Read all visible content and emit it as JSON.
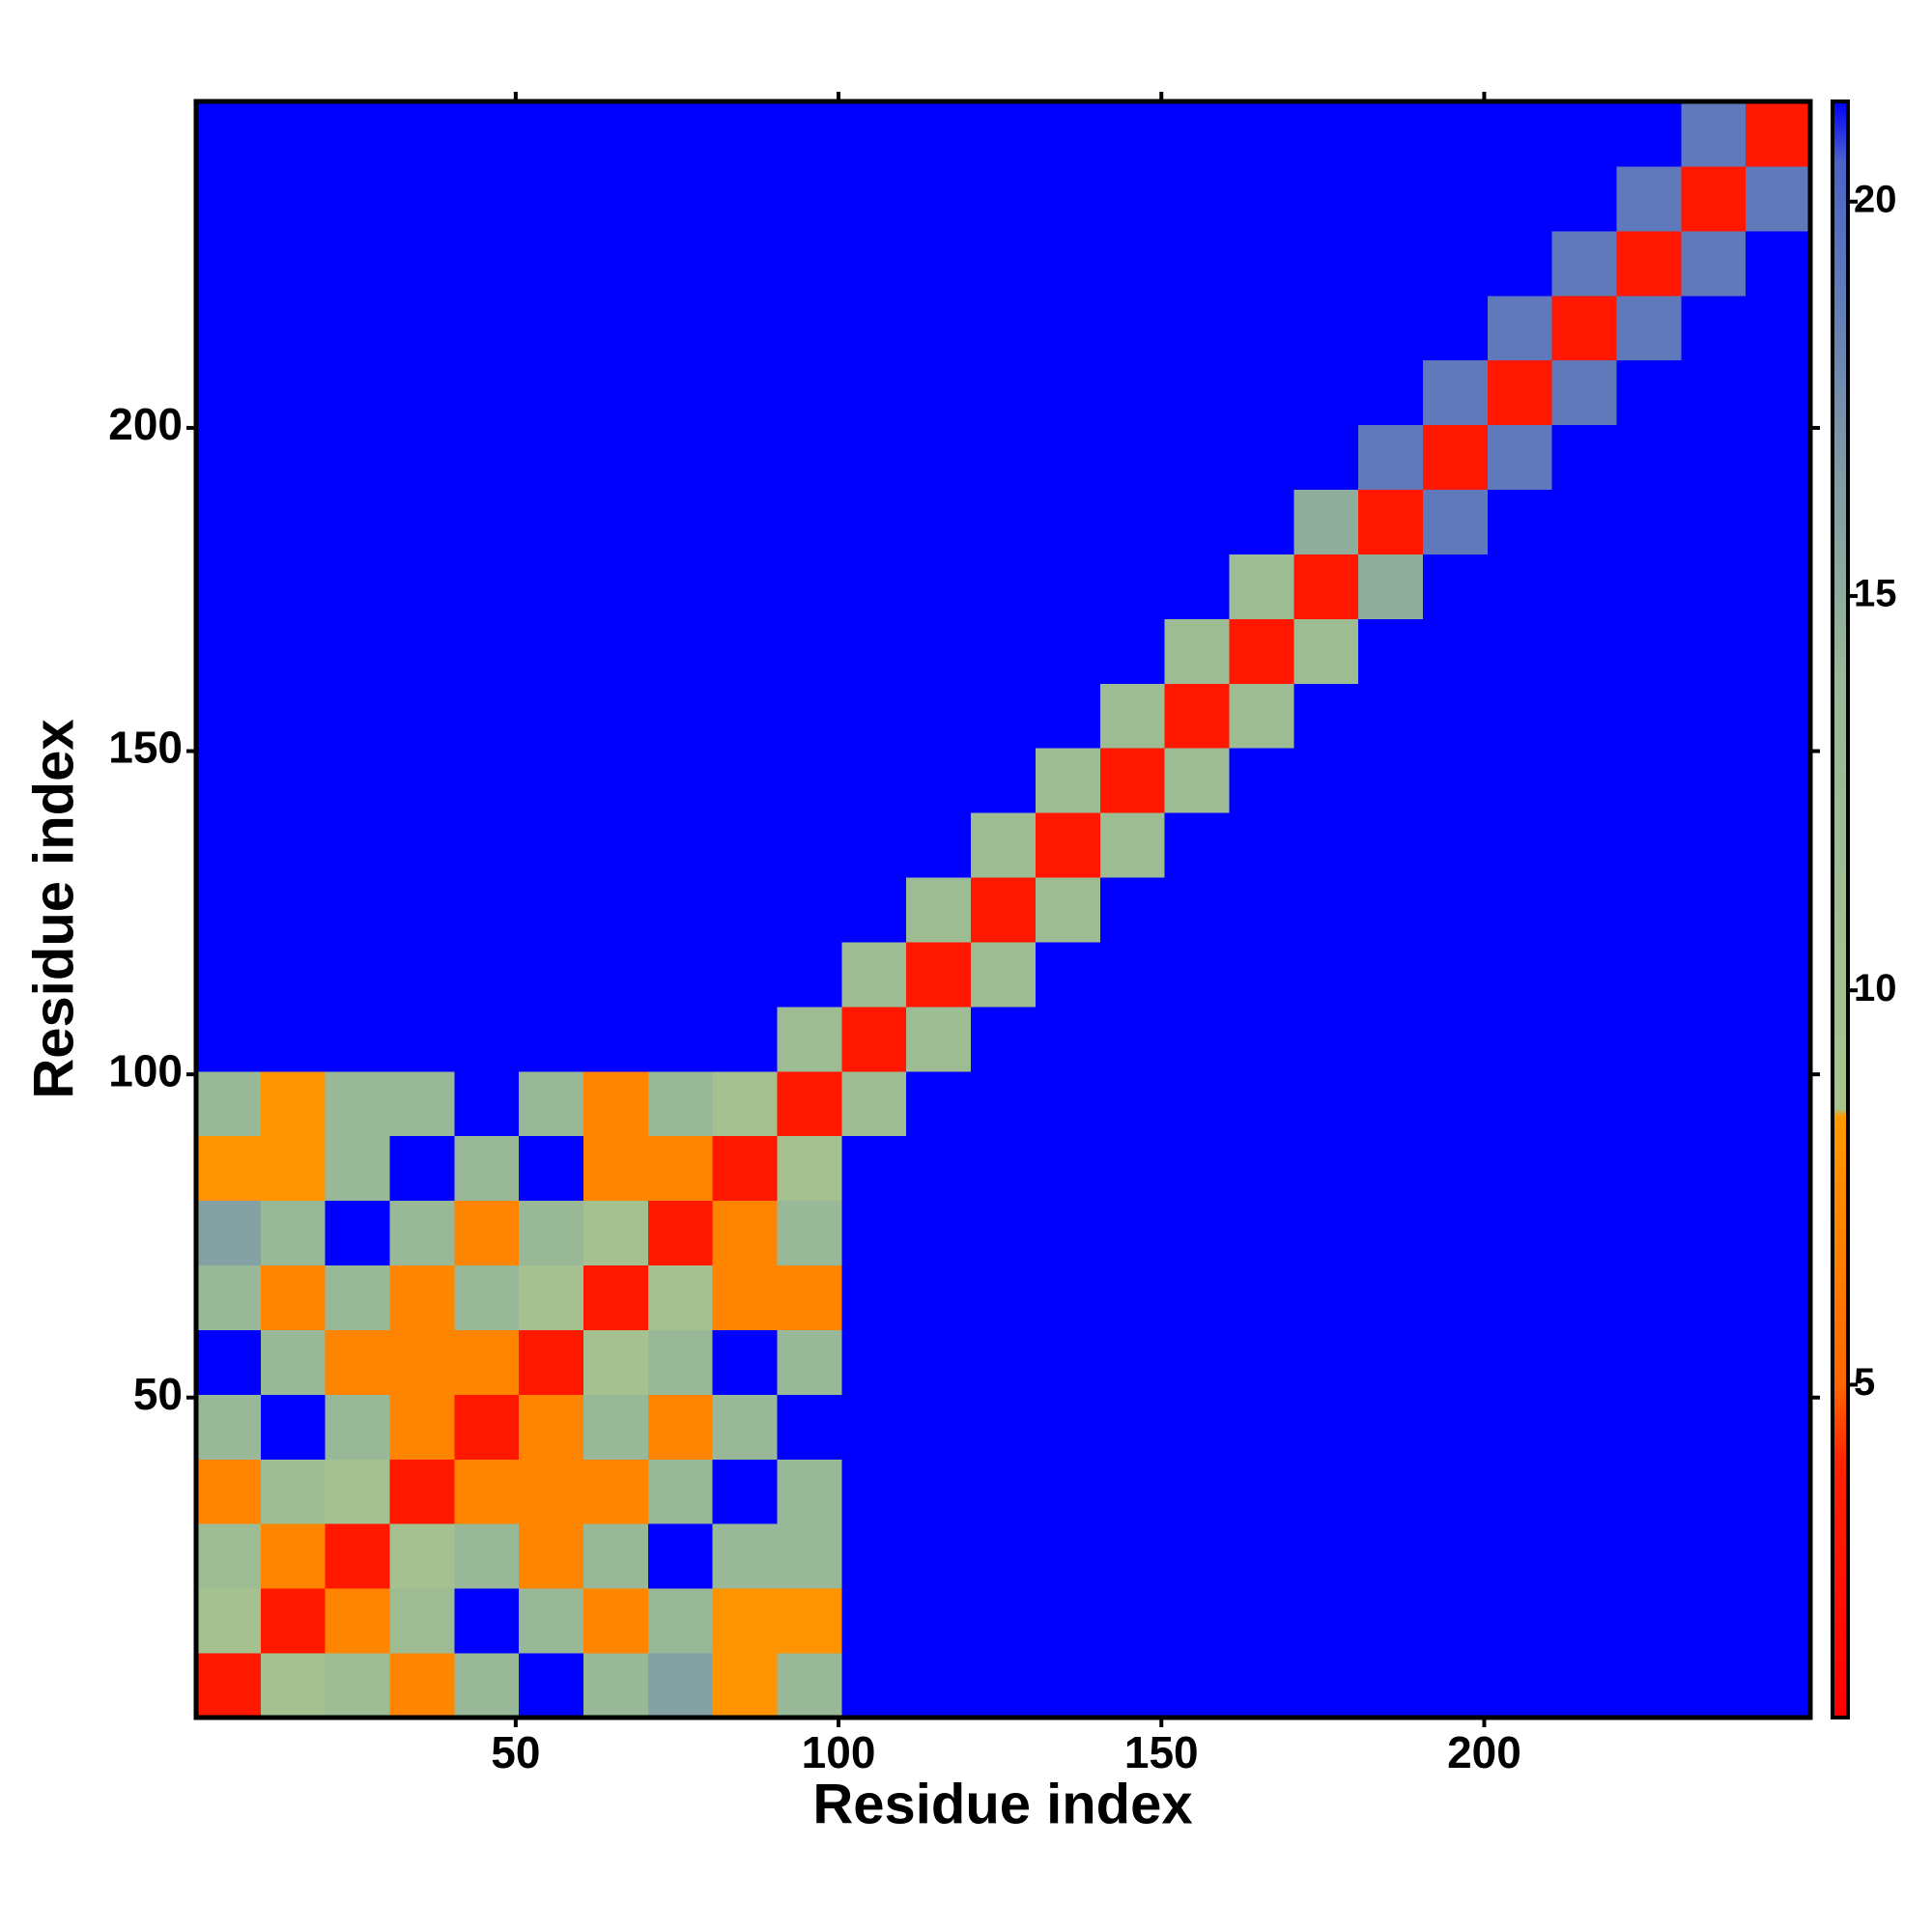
{
  "chart_data": {
    "type": "heatmap",
    "x_label": "Residue index",
    "y_label": "Residue index",
    "bins": [
      0.5,
      10.5,
      20.5,
      30.5,
      40.5,
      50.5,
      60.5,
      70.5,
      80.5,
      90.5,
      100.5,
      110.5,
      120.5,
      130.5,
      140.5,
      150.5,
      160.5,
      170.5,
      180.5,
      190.5,
      200.5,
      210.5,
      220.5,
      230.5,
      240.5,
      250.5
    ],
    "xlim": [
      0.5,
      250.5
    ],
    "ylim": [
      0.5,
      250.5
    ],
    "xticks": [
      50,
      100,
      150,
      200
    ],
    "yticks": [
      50,
      100,
      150,
      200
    ],
    "zlim": [
      0.78,
      21.27
    ],
    "zticks": [
      5,
      10,
      15,
      20
    ],
    "colorscale": [
      [
        0.78,
        "#ff0000"
      ],
      [
        4,
        "#ff2200"
      ],
      [
        5,
        "#ff6600"
      ],
      [
        8.4,
        "#ff9900"
      ],
      [
        8.5,
        "#a8c48c"
      ],
      [
        14,
        "#98b898"
      ],
      [
        17,
        "#7a96a8"
      ],
      [
        20.5,
        "#4a64c8"
      ],
      [
        21.27,
        "#0000ff"
      ]
    ],
    "z": [
      [
        3,
        10,
        12,
        7,
        14,
        21.27,
        14,
        16,
        8,
        14,
        21.27,
        21.27,
        21.27,
        21.27,
        21.27,
        21.27,
        21.27,
        21.27,
        21.27,
        21.27,
        21.27,
        21.27,
        21.27,
        21.27,
        21.27
      ],
      [
        10,
        3,
        7,
        12,
        21.27,
        14,
        7,
        14,
        8,
        8,
        21.27,
        21.27,
        21.27,
        21.27,
        21.27,
        21.27,
        21.27,
        21.27,
        21.27,
        21.27,
        21.27,
        21.27,
        21.27,
        21.27,
        21.27
      ],
      [
        12,
        7,
        3,
        10,
        14,
        7,
        14,
        21.27,
        14,
        14,
        21.27,
        21.27,
        21.27,
        21.27,
        21.27,
        21.27,
        21.27,
        21.27,
        21.27,
        21.27,
        21.27,
        21.27,
        21.27,
        21.27,
        21.27
      ],
      [
        7,
        12,
        10,
        3,
        7,
        7,
        7,
        14,
        21.27,
        14,
        21.27,
        21.27,
        21.27,
        21.27,
        21.27,
        21.27,
        21.27,
        21.27,
        21.27,
        21.27,
        21.27,
        21.27,
        21.27,
        21.27,
        21.27
      ],
      [
        14,
        21.27,
        14,
        7,
        3,
        7,
        14,
        7,
        14,
        21.27,
        21.27,
        21.27,
        21.27,
        21.27,
        21.27,
        21.27,
        21.27,
        21.27,
        21.27,
        21.27,
        21.27,
        21.27,
        21.27,
        21.27,
        21.27
      ],
      [
        21.27,
        14,
        7,
        7,
        7,
        3,
        10,
        14,
        21.27,
        14,
        21.27,
        21.27,
        21.27,
        21.27,
        21.27,
        21.27,
        21.27,
        21.27,
        21.27,
        21.27,
        21.27,
        21.27,
        21.27,
        21.27,
        21.27
      ],
      [
        14,
        7,
        14,
        7,
        14,
        10,
        3,
        10,
        7,
        7,
        21.27,
        21.27,
        21.27,
        21.27,
        21.27,
        21.27,
        21.27,
        21.27,
        21.27,
        21.27,
        21.27,
        21.27,
        21.27,
        21.27,
        21.27
      ],
      [
        16,
        14,
        21.27,
        14,
        7,
        14,
        10,
        3,
        7,
        14,
        21.27,
        21.27,
        21.27,
        21.27,
        21.27,
        21.27,
        21.27,
        21.27,
        21.27,
        21.27,
        21.27,
        21.27,
        21.27,
        21.27,
        21.27
      ],
      [
        8,
        8,
        14,
        21.27,
        14,
        21.27,
        7,
        7,
        3,
        10,
        21.27,
        21.27,
        21.27,
        21.27,
        21.27,
        21.27,
        21.27,
        21.27,
        21.27,
        21.27,
        21.27,
        21.27,
        21.27,
        21.27,
        21.27
      ],
      [
        14,
        8,
        14,
        14,
        21.27,
        14,
        7,
        14,
        10,
        3,
        12,
        21.27,
        21.27,
        21.27,
        21.27,
        21.27,
        21.27,
        21.27,
        21.27,
        21.27,
        21.27,
        21.27,
        21.27,
        21.27,
        21.27
      ],
      [
        21.27,
        21.27,
        21.27,
        21.27,
        21.27,
        21.27,
        21.27,
        21.27,
        21.27,
        12,
        3,
        12,
        21.27,
        21.27,
        21.27,
        21.27,
        21.27,
        21.27,
        21.27,
        21.27,
        21.27,
        21.27,
        21.27,
        21.27,
        21.27
      ],
      [
        21.27,
        21.27,
        21.27,
        21.27,
        21.27,
        21.27,
        21.27,
        21.27,
        21.27,
        21.27,
        12,
        3,
        12,
        21.27,
        21.27,
        21.27,
        21.27,
        21.27,
        21.27,
        21.27,
        21.27,
        21.27,
        21.27,
        21.27,
        21.27
      ],
      [
        21.27,
        21.27,
        21.27,
        21.27,
        21.27,
        21.27,
        21.27,
        21.27,
        21.27,
        21.27,
        21.27,
        12,
        3,
        12,
        21.27,
        21.27,
        21.27,
        21.27,
        21.27,
        21.27,
        21.27,
        21.27,
        21.27,
        21.27,
        21.27
      ],
      [
        21.27,
        21.27,
        21.27,
        21.27,
        21.27,
        21.27,
        21.27,
        21.27,
        21.27,
        21.27,
        21.27,
        21.27,
        12,
        3,
        12,
        21.27,
        21.27,
        21.27,
        21.27,
        21.27,
        21.27,
        21.27,
        21.27,
        21.27,
        21.27
      ],
      [
        21.27,
        21.27,
        21.27,
        21.27,
        21.27,
        21.27,
        21.27,
        21.27,
        21.27,
        21.27,
        21.27,
        21.27,
        21.27,
        12,
        3,
        12,
        21.27,
        21.27,
        21.27,
        21.27,
        21.27,
        21.27,
        21.27,
        21.27,
        21.27
      ],
      [
        21.27,
        21.27,
        21.27,
        21.27,
        21.27,
        21.27,
        21.27,
        21.27,
        21.27,
        21.27,
        21.27,
        21.27,
        21.27,
        21.27,
        12,
        3,
        12,
        21.27,
        21.27,
        21.27,
        21.27,
        21.27,
        21.27,
        21.27,
        21.27
      ],
      [
        21.27,
        21.27,
        21.27,
        21.27,
        21.27,
        21.27,
        21.27,
        21.27,
        21.27,
        21.27,
        21.27,
        21.27,
        21.27,
        21.27,
        21.27,
        12,
        3,
        12,
        21.27,
        21.27,
        21.27,
        21.27,
        21.27,
        21.27,
        21.27
      ],
      [
        21.27,
        21.27,
        21.27,
        21.27,
        21.27,
        21.27,
        21.27,
        21.27,
        21.27,
        21.27,
        21.27,
        21.27,
        21.27,
        21.27,
        21.27,
        21.27,
        12,
        3,
        15,
        21.27,
        21.27,
        21.27,
        21.27,
        21.27,
        21.27
      ],
      [
        21.27,
        21.27,
        21.27,
        21.27,
        21.27,
        21.27,
        21.27,
        21.27,
        21.27,
        21.27,
        21.27,
        21.27,
        21.27,
        21.27,
        21.27,
        21.27,
        21.27,
        15,
        3,
        19,
        21.27,
        21.27,
        21.27,
        21.27,
        21.27
      ],
      [
        21.27,
        21.27,
        21.27,
        21.27,
        21.27,
        21.27,
        21.27,
        21.27,
        21.27,
        21.27,
        21.27,
        21.27,
        21.27,
        21.27,
        21.27,
        21.27,
        21.27,
        21.27,
        19,
        3,
        19,
        21.27,
        21.27,
        21.27,
        21.27
      ],
      [
        21.27,
        21.27,
        21.27,
        21.27,
        21.27,
        21.27,
        21.27,
        21.27,
        21.27,
        21.27,
        21.27,
        21.27,
        21.27,
        21.27,
        21.27,
        21.27,
        21.27,
        21.27,
        21.27,
        19,
        3,
        19,
        21.27,
        21.27,
        21.27
      ],
      [
        21.27,
        21.27,
        21.27,
        21.27,
        21.27,
        21.27,
        21.27,
        21.27,
        21.27,
        21.27,
        21.27,
        21.27,
        21.27,
        21.27,
        21.27,
        21.27,
        21.27,
        21.27,
        21.27,
        21.27,
        19,
        3,
        19,
        21.27,
        21.27
      ],
      [
        21.27,
        21.27,
        21.27,
        21.27,
        21.27,
        21.27,
        21.27,
        21.27,
        21.27,
        21.27,
        21.27,
        21.27,
        21.27,
        21.27,
        21.27,
        21.27,
        21.27,
        21.27,
        21.27,
        21.27,
        21.27,
        19,
        3,
        19,
        21.27
      ],
      [
        21.27,
        21.27,
        21.27,
        21.27,
        21.27,
        21.27,
        21.27,
        21.27,
        21.27,
        21.27,
        21.27,
        21.27,
        21.27,
        21.27,
        21.27,
        21.27,
        21.27,
        21.27,
        21.27,
        21.27,
        21.27,
        21.27,
        19,
        3,
        19
      ],
      [
        21.27,
        21.27,
        21.27,
        21.27,
        21.27,
        21.27,
        21.27,
        21.27,
        21.27,
        21.27,
        21.27,
        21.27,
        21.27,
        21.27,
        21.27,
        21.27,
        21.27,
        21.27,
        21.27,
        21.27,
        21.27,
        21.27,
        21.27,
        19,
        3
      ]
    ]
  }
}
